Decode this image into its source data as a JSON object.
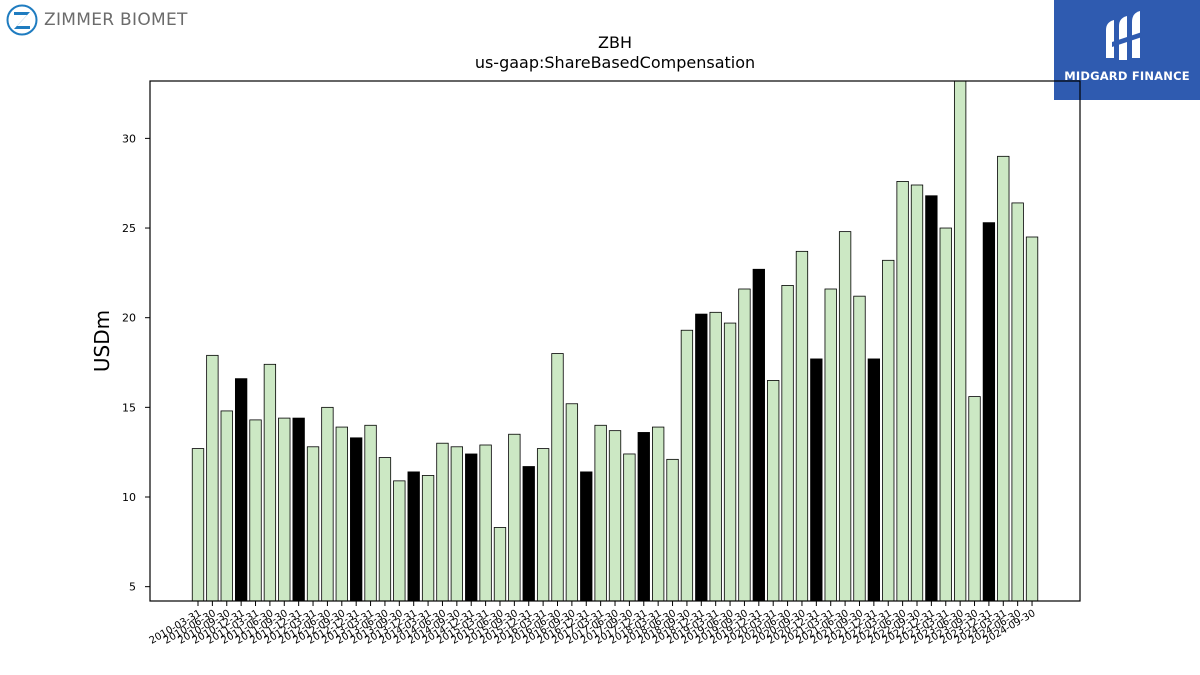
{
  "brand": {
    "left_logo_icon": "zimmer-biomet-z-icon",
    "left_name": "ZIMMER BIOMET",
    "right_logo_icon": "midgard-finance-mark-icon",
    "right_name": "MIDGARD FINANCE",
    "right_bg": "#2f5bb0"
  },
  "chart_data": {
    "type": "bar",
    "title": "ZBH",
    "subtitle": "us-gaap:ShareBasedCompensation",
    "xlabel": "",
    "ylabel": "USDm",
    "ylim": [
      4.2,
      33.2
    ],
    "yticks": [
      5,
      10,
      15,
      20,
      25,
      30
    ],
    "grid": false,
    "colors": {
      "default": "#cce8c4",
      "highlight": "#000000",
      "edge": "#000000"
    },
    "categories": [
      "2010-03-31",
      "2010-06-30",
      "2010-09-30",
      "2010-12-31",
      "2011-03-31",
      "2011-06-30",
      "2011-09-30",
      "2011-12-31",
      "2012-03-31",
      "2012-06-30",
      "2012-09-30",
      "2012-12-31",
      "2013-03-31",
      "2013-06-30",
      "2013-09-30",
      "2013-12-31",
      "2014-03-31",
      "2014-06-30",
      "2014-09-30",
      "2014-12-31",
      "2015-03-31",
      "2015-06-30",
      "2015-09-30",
      "2015-12-31",
      "2016-03-31",
      "2016-06-30",
      "2016-09-30",
      "2016-12-31",
      "2017-03-31",
      "2017-06-30",
      "2017-09-30",
      "2017-12-31",
      "2018-03-31",
      "2018-06-30",
      "2018-09-30",
      "2018-12-31",
      "2019-03-31",
      "2019-06-30",
      "2019-09-30",
      "2019-12-31",
      "2020-03-31",
      "2020-06-30",
      "2020-09-30",
      "2020-12-31",
      "2021-03-31",
      "2021-06-30",
      "2021-09-30",
      "2021-12-31",
      "2022-03-31",
      "2022-06-30",
      "2022-09-30",
      "2022-12-31",
      "2023-03-31",
      "2023-06-30",
      "2023-09-30",
      "2023-12-31",
      "2024-03-31",
      "2024-06-30",
      "2024-09-30"
    ],
    "tick_labels": [
      "2010-03-31",
      "2010-06-30",
      "2010-09-30",
      "2010-12-31",
      "2011-03-31",
      "2011-06-30",
      "2011-09-30",
      "2011-12-31",
      "2012-03-31",
      "2012-06-30",
      "2012-09-30",
      "2012-12-31",
      "2013-03-31",
      "2013-06-30",
      "2013-09-30",
      "2013-12-31",
      "2014-03-31",
      "2014-06-30",
      "2014-09-30",
      "2014-12-31",
      "2015-03-31",
      "2015-06-30",
      "2015-09-30",
      "2015-12-31",
      "2016-03-31",
      "2016-06-30",
      "2016-09-30",
      "2016-12-31",
      "2017-03-31",
      "2017-06-30",
      "2017-09-30",
      "2017-12-31",
      "2018-03-31",
      "2018-06-30",
      "2018-09-30",
      "2018-12-31",
      "2019-03-31",
      "2019-06-30",
      "2019-09-30",
      "2019-12-31",
      "2020-03-31",
      "2020-06-30",
      "2020-09-30",
      "2020-12-31",
      "2021-03-31",
      "2021-06-30",
      "2021-09-30",
      "2021-12-31",
      "2022-03-31",
      "2022-06-30",
      "2022-09-30",
      "2022-12-31",
      "2023-03-31",
      "2023-06-30",
      "2023-09-30",
      "2023-12-31",
      "2024-03-31",
      "2024-06-30",
      "2024-09-30"
    ],
    "values": [
      12.7,
      17.9,
      14.8,
      16.6,
      14.3,
      17.4,
      14.4,
      14.4,
      12.8,
      15.0,
      13.9,
      13.3,
      14.0,
      12.2,
      10.9,
      11.4,
      11.2,
      13.0,
      12.8,
      12.4,
      12.9,
      8.3,
      13.5,
      11.7,
      12.7,
      18.0,
      15.2,
      11.4,
      14.0,
      13.7,
      12.4,
      13.6,
      13.9,
      12.1,
      19.3,
      20.2,
      20.3,
      19.7,
      21.6,
      22.7,
      16.5,
      21.8,
      23.7,
      17.7,
      21.6,
      24.8,
      21.2,
      17.7,
      23.2,
      27.6,
      27.4,
      26.8,
      25.0,
      33.2,
      15.6,
      25.3,
      29.0,
      26.4,
      24.5
    ],
    "highlight": [
      false,
      false,
      false,
      true,
      false,
      false,
      false,
      true,
      false,
      false,
      false,
      true,
      false,
      false,
      false,
      true,
      false,
      false,
      false,
      true,
      false,
      false,
      false,
      true,
      false,
      false,
      false,
      true,
      false,
      false,
      false,
      true,
      false,
      false,
      false,
      true,
      false,
      false,
      false,
      true,
      false,
      false,
      false,
      true,
      false,
      false,
      false,
      true,
      false,
      false,
      false,
      true,
      false,
      false,
      false,
      true,
      false,
      false,
      false
    ]
  }
}
